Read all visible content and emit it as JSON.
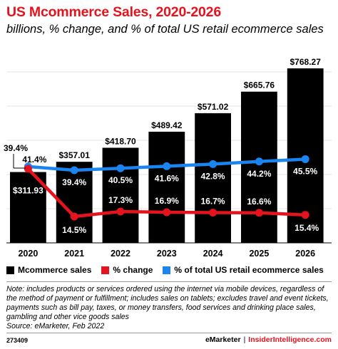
{
  "title": "US Mcommerce Sales, 2020-2026",
  "subtitle": "billions, % change, and % of total US retail ecommerce sales",
  "chart_data": {
    "type": "bar",
    "categories": [
      "2020",
      "2021",
      "2022",
      "2023",
      "2024",
      "2025",
      "2026"
    ],
    "bars": {
      "name": "Mcommerce sales",
      "values": [
        311.93,
        357.01,
        418.7,
        489.42,
        571.02,
        665.76,
        768.27
      ],
      "labels": [
        "$311.93",
        "$357.01",
        "$418.70",
        "$489.42",
        "$571.02",
        "$665.76",
        "$768.27"
      ],
      "color": "#000000"
    },
    "change": {
      "name": "% change",
      "values": [
        39.4,
        14.5,
        17.3,
        16.9,
        16.7,
        16.6,
        15.4
      ],
      "labels": [
        "39.4%",
        "14.5%",
        "17.3%",
        "16.9%",
        "16.7%",
        "16.6%",
        "15.4%"
      ],
      "color": "#e5131d"
    },
    "share": {
      "name": "% of total US retail ecommerce sales",
      "values": [
        41.4,
        39.4,
        40.5,
        41.6,
        42.8,
        44.2,
        45.5
      ],
      "labels": [
        "41.4%",
        "39.4%",
        "40.5%",
        "41.6%",
        "42.8%",
        "44.2%",
        "45.5%"
      ],
      "color": "#1a85f0"
    }
  },
  "legend": {
    "bars": "Mcommerce sales",
    "change": "% change",
    "share": "% of total US retail ecommerce sales"
  },
  "note": "Note: includes products or services ordered using the internet via mobile devices, regardless of the method of payment or fulfillment; includes sales on tablets; excludes travel and event tickets, payments such as bill pay, taxes, or money transfers, food services and drinking place sales, gambling and other vice goods sales",
  "source": "Source: eMarketer, Feb 2022",
  "footer": {
    "id": "273409",
    "brand_left": "eMarketer",
    "brand_right": "InsiderIntelligence.com"
  }
}
